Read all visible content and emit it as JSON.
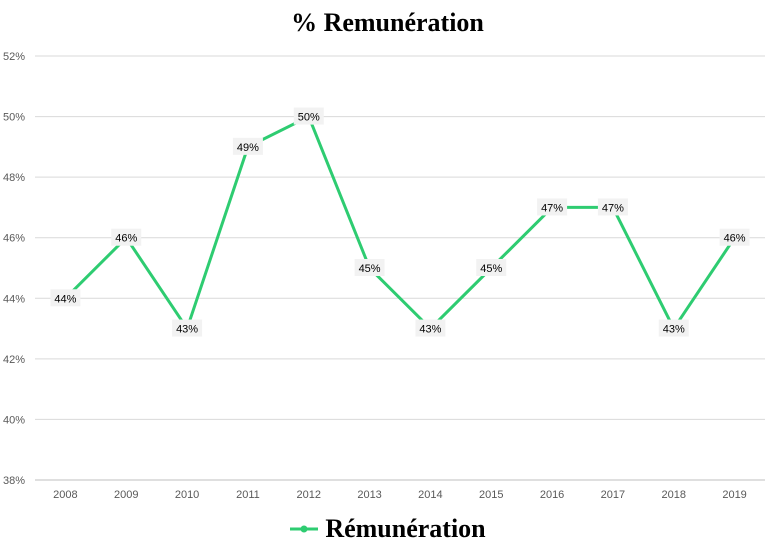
{
  "chart_data": {
    "type": "line",
    "title": "% Remunération",
    "xlabel": "",
    "ylabel": "",
    "categories": [
      "2008",
      "2009",
      "2010",
      "2011",
      "2012",
      "2013",
      "2014",
      "2015",
      "2016",
      "2017",
      "2018",
      "2019"
    ],
    "series": [
      {
        "name": "Rémunération",
        "values": [
          44,
          46,
          43,
          49,
          50,
          45,
          43,
          45,
          47,
          47,
          43,
          46
        ],
        "data_labels": [
          "44%",
          "46%",
          "43%",
          "49%",
          "50%",
          "45%",
          "43%",
          "45%",
          "47%",
          "47%",
          "43%",
          "46%"
        ],
        "color": "#2ecc71"
      }
    ],
    "ylim": [
      38,
      52
    ],
    "yticks": [
      "38%",
      "40%",
      "42%",
      "44%",
      "46%",
      "48%",
      "50%",
      "52%"
    ],
    "grid": true,
    "legend_position": "bottom"
  }
}
